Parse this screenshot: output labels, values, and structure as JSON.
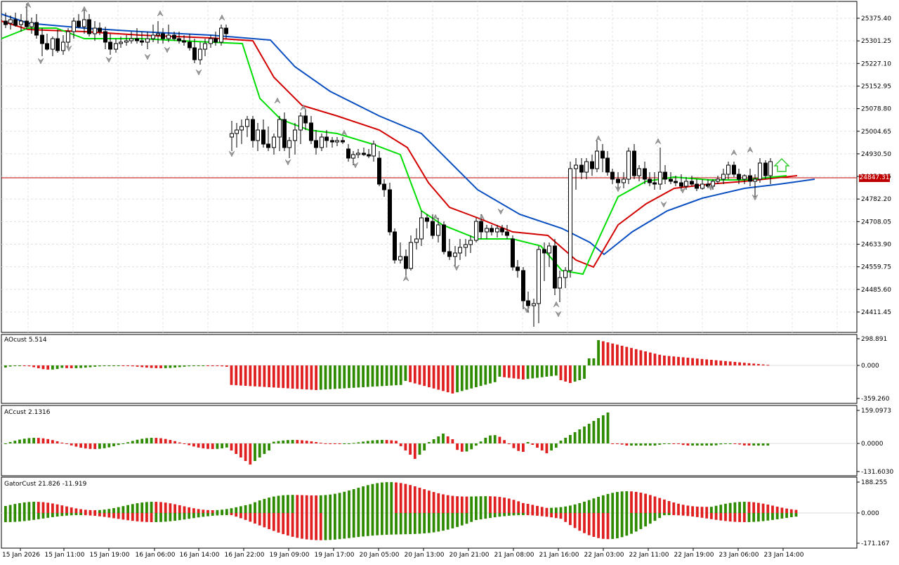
{
  "main_chart": {
    "price_ticks": [
      "25375.40",
      "25301.25",
      "25227.10",
      "25152.95",
      "25078.80",
      "25004.65",
      "24930.50",
      "24856.35",
      "24782.20",
      "24708.05",
      "24633.90",
      "24559.75",
      "24485.60",
      "24411.45"
    ],
    "current_price": "24847.31",
    "time_labels": [
      "15 Jan 2026",
      "15 Jan 11:00",
      "15 Jan 19:00",
      "16 Jan 06:00",
      "16 Jan 14:00",
      "16 Jan 22:00",
      "19 Jan 09:00",
      "19 Jan 17:00",
      "20 Jan 05:00",
      "20 Jan 13:00",
      "20 Jan 21:00",
      "21 Jan 08:00",
      "21 Jan 16:00",
      "22 Jan 03:00",
      "22 Jan 11:00",
      "22 Jan 19:00",
      "23 Jan 06:00",
      "23 Jan 14:00"
    ],
    "colors": {
      "jaw": "#0a4fc2",
      "teeth": "#d30000",
      "lips": "#00dd00",
      "price_line": "#c00000",
      "grid": "#e0e0e0",
      "up_bar": "#2e8b00",
      "down_bar": "#e02020"
    }
  },
  "ao_pane": {
    "title": "AOcust 5.514",
    "ticks": [
      "298.891",
      "0.000",
      "-359.260"
    ]
  },
  "ac_pane": {
    "title": "ACcust 2.1316",
    "ticks": [
      "159.0973",
      "0.0000",
      "-131.6030"
    ]
  },
  "gator_pane": {
    "title": "GatorCust 21.826 -11.919",
    "ticks": [
      "188.255",
      "0.000",
      "-171.167"
    ]
  }
}
